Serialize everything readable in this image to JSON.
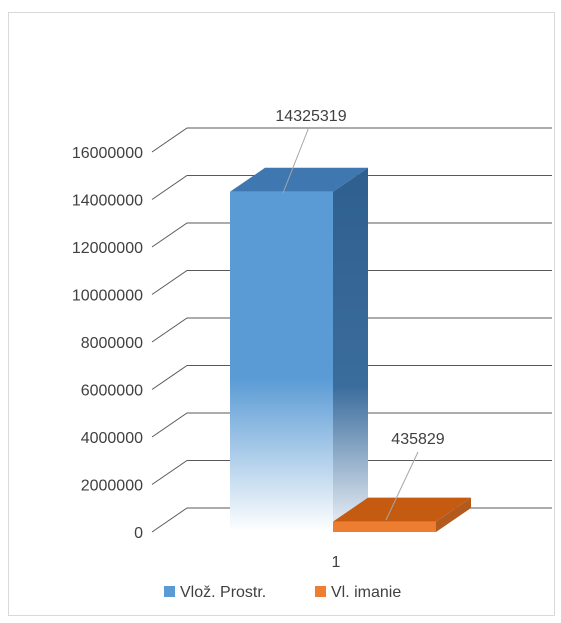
{
  "chart_data": {
    "type": "bar",
    "categories": [
      "1"
    ],
    "series": [
      {
        "name": "Vlož. Prostr.",
        "values": [
          14325319
        ],
        "color": "#5b9bd5"
      },
      {
        "name": "Vl. imanie",
        "values": [
          435829
        ],
        "color": "#ed7d31"
      }
    ],
    "data_labels": [
      "14325319",
      "435829"
    ],
    "y_ticks": [
      "0",
      "2000000",
      "4000000",
      "6000000",
      "8000000",
      "10000000",
      "12000000",
      "14000000",
      "16000000"
    ],
    "ylim": [
      0,
      16000000
    ],
    "title": "",
    "xlabel": "",
    "ylabel": "",
    "legend_position": "bottom",
    "grid": true,
    "style": "3d-bar"
  }
}
